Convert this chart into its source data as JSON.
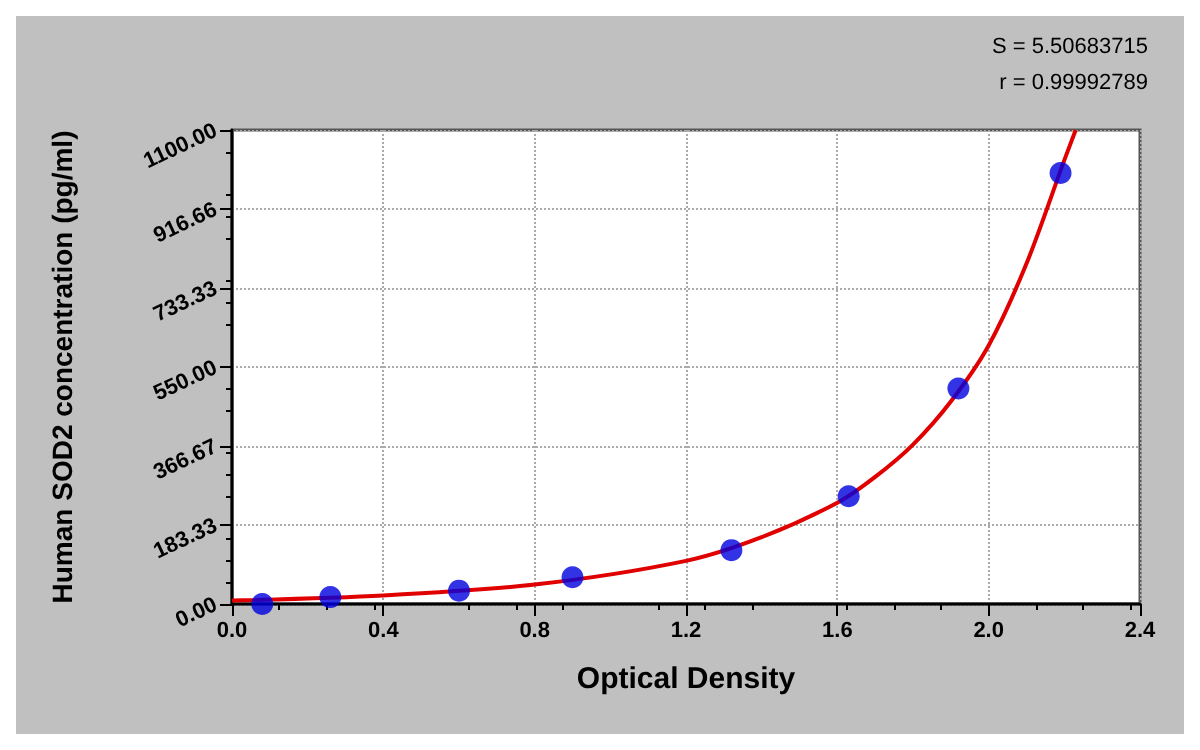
{
  "chart_data": {
    "type": "scatter",
    "xlabel": "Optical Density",
    "ylabel": "Human SOD2 concentration (pg/ml)",
    "annotations": [
      "S = 5.50683715",
      "r = 0.99992789"
    ],
    "xlim": [
      0,
      2.4
    ],
    "xticks": [
      {
        "value": 0,
        "label": "0.0"
      },
      0.4,
      0.8,
      1.2,
      1.6,
      {
        "value": 2,
        "label": "2.0"
      },
      2.4
    ],
    "ylim": [
      0,
      1100
    ],
    "yticks": [
      {
        "value": 0,
        "label": "0.00"
      },
      183.33,
      366.67,
      {
        "value": 550,
        "label": "550.00"
      },
      733.33,
      916.66,
      {
        "value": 1100,
        "label": "1100.00"
      }
    ],
    "grid": true,
    "series": [
      {
        "type": "line",
        "color": "#e00000",
        "marker": "none",
        "line_style": "solid",
        "x": [
          0,
          0.4,
          0.8,
          1.2,
          1.4,
          1.6,
          1.7,
          1.8,
          1.9,
          2.0,
          2.1,
          2.2,
          2.23
        ],
        "values": [
          8,
          20,
          45,
          100,
          155,
          235,
          295,
          370,
          470,
          600,
          790,
          1030,
          1100
        ]
      },
      {
        "type": "scatter",
        "color": "#0000e0",
        "marker": "circle",
        "x": [
          0.08,
          0.26,
          0.6,
          0.9,
          1.32,
          1.63,
          1.92,
          2.19
        ],
        "values": [
          0,
          16,
          31,
          62,
          125,
          250,
          500,
          1000
        ]
      }
    ]
  }
}
